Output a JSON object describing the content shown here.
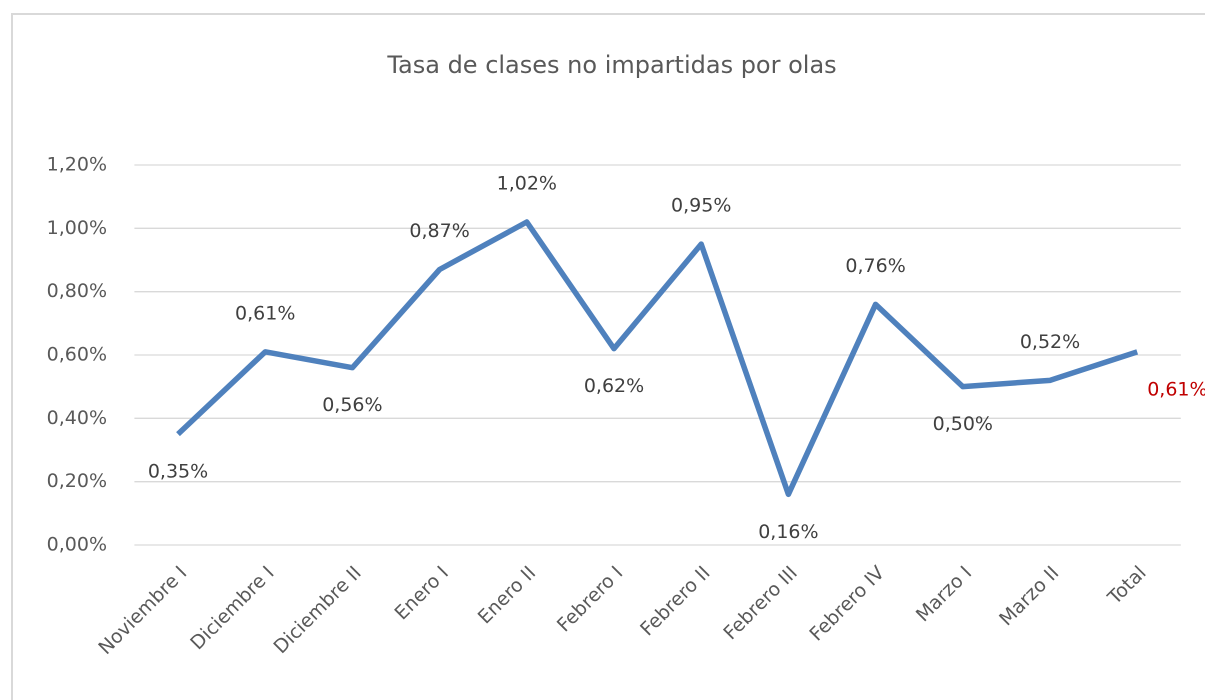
{
  "chart_data": {
    "type": "line",
    "title": "Tasa de clases no impartidas por olas",
    "categories": [
      "Noviembre I",
      "Diciembre I",
      "Diciembre II",
      "Enero I",
      "Enero II",
      "Febrero I",
      "Febrero II",
      "Febrero III",
      "Febrero IV",
      "Marzo I",
      "Marzo II",
      "Total"
    ],
    "series": [
      {
        "name": "Tasa",
        "color": "#4f81bd",
        "values": [
          0.35,
          0.61,
          0.56,
          0.87,
          1.02,
          0.62,
          0.95,
          0.16,
          0.76,
          0.5,
          0.52,
          0.61
        ],
        "value_labels": [
          "0,35%",
          "0,61%",
          "0,56%",
          "0,87%",
          "1,02%",
          "0,62%",
          "0,95%",
          "0,16%",
          "0,76%",
          "0,50%",
          "0,52%",
          "0,61%"
        ],
        "value_label_colors": [
          "#404040",
          "#404040",
          "#404040",
          "#404040",
          "#404040",
          "#404040",
          "#404040",
          "#404040",
          "#404040",
          "#404040",
          "#404040",
          "#c00000"
        ]
      }
    ],
    "ylim": [
      0,
      1.2
    ],
    "yticks": [
      {
        "value": 0,
        "label": "0,00%"
      },
      {
        "value": 0.2,
        "label": "0,20%"
      },
      {
        "value": 0.4,
        "label": "0,40%"
      },
      {
        "value": 0.6,
        "label": "0,60%"
      },
      {
        "value": 0.8,
        "label": "0,80%"
      },
      {
        "value": 1.0,
        "label": "1,00%"
      },
      {
        "value": 1.2,
        "label": "1,20%"
      }
    ],
    "grid": true
  }
}
